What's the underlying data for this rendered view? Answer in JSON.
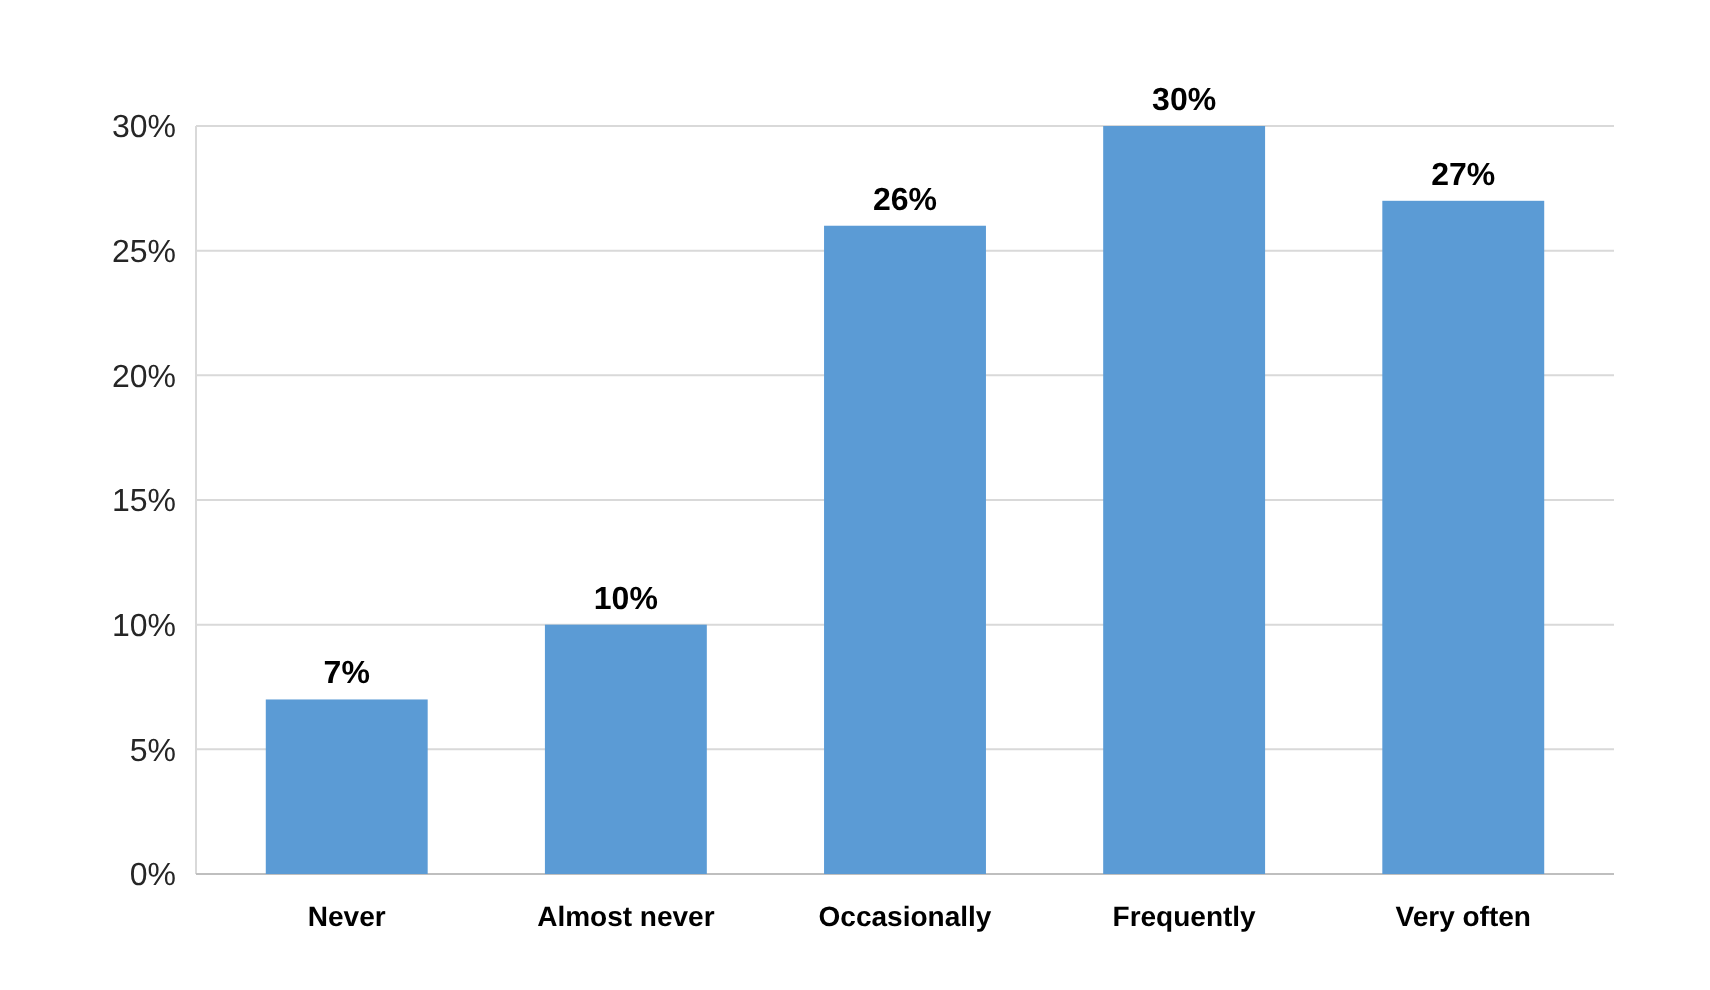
{
  "chart_data": {
    "type": "bar",
    "categories": [
      "Never",
      "Almost never",
      "Occasionally",
      "Frequently",
      "Very often"
    ],
    "values": [
      7,
      10,
      26,
      30,
      27
    ],
    "value_labels": [
      "7%",
      "10%",
      "26%",
      "30%",
      "27%"
    ],
    "color": "#5b9bd5",
    "ylim": [
      0,
      30
    ],
    "yticks": [
      {
        "value": 0,
        "label": "0%"
      },
      {
        "value": 5,
        "label": "5%"
      },
      {
        "value": 10,
        "label": "10%"
      },
      {
        "value": 15,
        "label": "15%"
      },
      {
        "value": 20,
        "label": "20%"
      },
      {
        "value": 25,
        "label": "25%"
      },
      {
        "value": 30,
        "label": "30%"
      }
    ],
    "grid": "y"
  }
}
